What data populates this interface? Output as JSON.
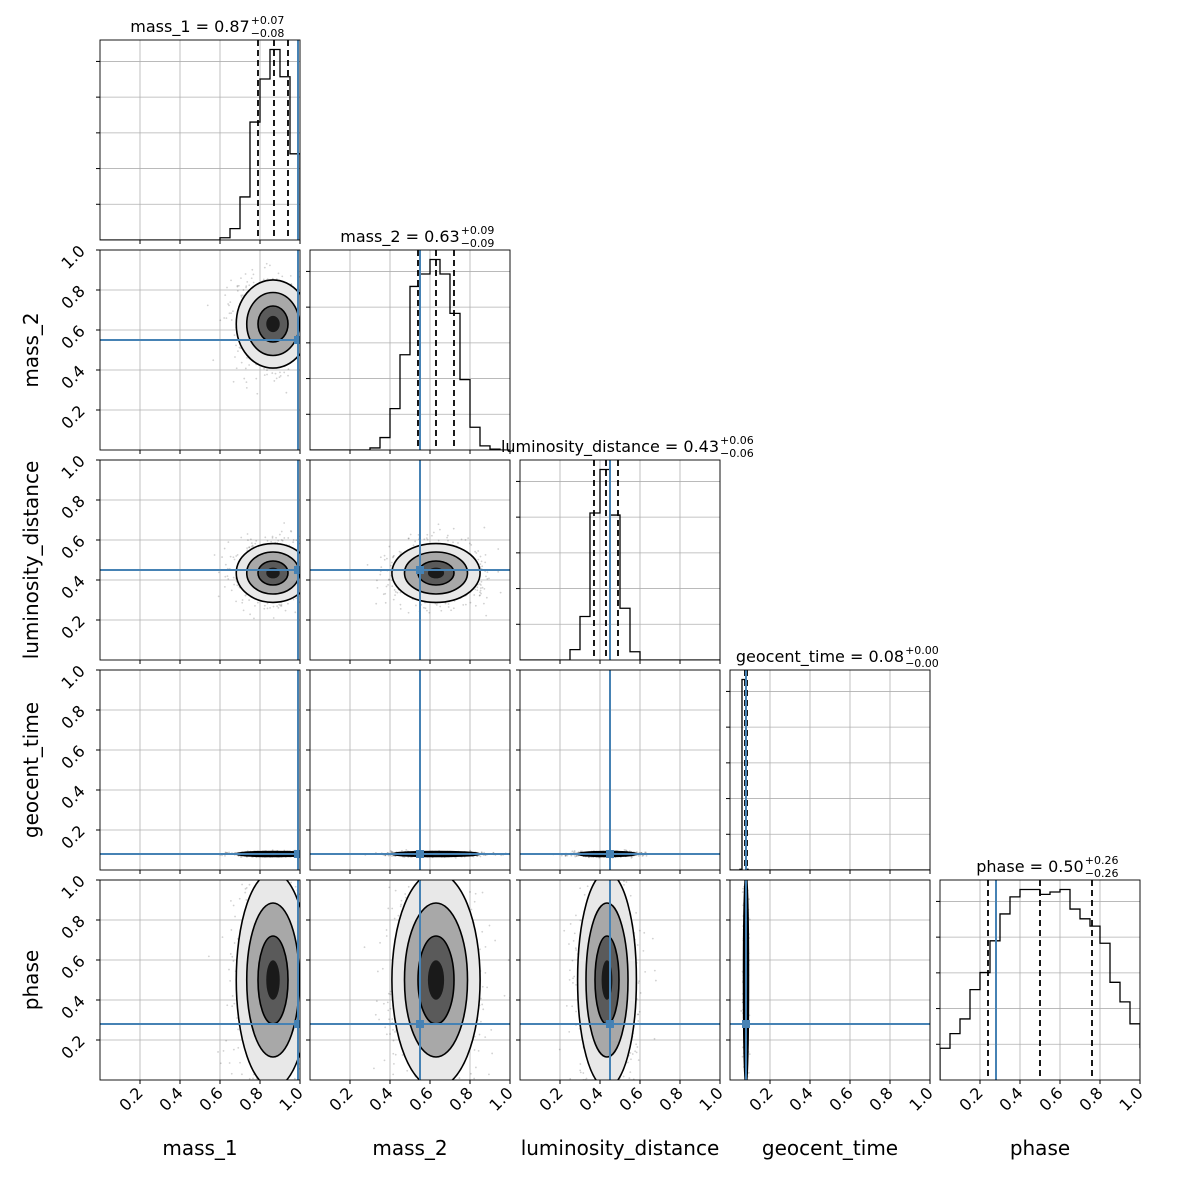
{
  "chart_data": {
    "type": "corner",
    "parameters": [
      "mass_1",
      "mass_2",
      "luminosity_distance",
      "geocent_time",
      "phase"
    ],
    "axis_labels": [
      "mass_1",
      "mass_2",
      "luminosity_distance",
      "geocent_time",
      "phase"
    ],
    "tick_labels": [
      "0.2",
      "0.4",
      "0.6",
      "0.8",
      "1.0"
    ],
    "axis_ranges": [
      [
        0,
        1
      ],
      [
        0,
        1
      ],
      [
        0,
        1
      ],
      [
        0,
        1
      ],
      [
        0,
        1
      ]
    ],
    "grid": true,
    "truths": [
      0.99,
      0.55,
      0.45,
      0.08,
      0.28
    ],
    "truth_color": "#4682b4",
    "hist_color": "#000000",
    "titles": [
      {
        "param": "mass_1",
        "text": "mass_1 = 0.87",
        "sup": "+0.07",
        "sub": "−0.08"
      },
      {
        "param": "mass_2",
        "text": "mass_2 = 0.63",
        "sup": "+0.09",
        "sub": "−0.09"
      },
      {
        "param": "luminosity_distance",
        "text": "luminosity_distance = 0.43",
        "sup": "+0.06",
        "sub": "−0.06"
      },
      {
        "param": "geocent_time",
        "text": "geocent_time = 0.08",
        "sup": "+0.00",
        "sub": "−0.00"
      },
      {
        "param": "phase",
        "text": "phase = 0.50",
        "sup": "+0.26",
        "sub": "−0.26"
      }
    ],
    "quantiles": [
      [
        0.79,
        0.87,
        0.94
      ],
      [
        0.54,
        0.63,
        0.72
      ],
      [
        0.37,
        0.43,
        0.49
      ],
      [
        0.075,
        0.08,
        0.085
      ],
      [
        0.24,
        0.5,
        0.76
      ]
    ],
    "marginals": [
      {
        "bins": [
          0.6,
          0.65,
          0.7,
          0.75,
          0.8,
          0.85,
          0.9,
          0.95,
          1.0
        ],
        "counts": [
          0.05,
          0.25,
          0.95,
          2.6,
          3.55,
          4.2,
          3.6,
          1.9
        ]
      },
      {
        "bins": [
          0.3,
          0.35,
          0.4,
          0.45,
          0.5,
          0.55,
          0.6,
          0.65,
          0.7,
          0.75,
          0.8,
          0.85,
          0.9,
          0.95
        ],
        "counts": [
          0.05,
          0.3,
          1.0,
          2.3,
          3.95,
          4.25,
          4.6,
          4.25,
          3.3,
          1.7,
          0.55,
          0.1,
          0.02
        ]
      },
      {
        "bins": [
          0.25,
          0.3,
          0.35,
          0.4,
          0.45,
          0.5,
          0.55,
          0.6
        ],
        "counts": [
          0.25,
          1.05,
          3.55,
          4.6,
          3.5,
          1.25,
          0.2
        ]
      },
      {
        "bins": [
          0.05,
          0.06,
          0.07,
          0.08,
          0.09
        ],
        "counts": [
          0.02,
          4.85,
          4.85,
          0.02
        ]
      },
      {
        "bins": [
          0,
          0.05,
          0.1,
          0.15,
          0.2,
          0.25,
          0.3,
          0.35,
          0.4,
          0.45,
          0.5,
          0.55,
          0.6,
          0.65,
          0.7,
          0.75,
          0.8,
          0.85,
          0.9,
          0.95,
          1.0
        ],
        "counts": [
          0.65,
          0.95,
          1.25,
          1.85,
          2.2,
          2.85,
          3.4,
          3.75,
          3.9,
          3.9,
          3.8,
          3.85,
          3.9,
          3.5,
          3.3,
          3.15,
          2.8,
          2.0,
          1.6,
          1.15,
          0.65
        ]
      }
    ],
    "joint_summaries": [
      {
        "pair": [
          "mass_2",
          "mass_1"
        ],
        "center": [
          0.865,
          0.63
        ],
        "spread": [
          0.075,
          0.09
        ],
        "rho": 0.0
      },
      {
        "pair": [
          "luminosity_distance",
          "mass_1"
        ],
        "center": [
          0.865,
          0.435
        ],
        "spread": [
          0.075,
          0.06
        ],
        "rho": 0.0
      },
      {
        "pair": [
          "luminosity_distance",
          "mass_2"
        ],
        "center": [
          0.63,
          0.435
        ],
        "spread": [
          0.09,
          0.06
        ],
        "rho": 0.0
      },
      {
        "pair": [
          "geocent_time",
          "mass_1"
        ],
        "center": [
          0.865,
          0.08
        ],
        "spread": [
          0.075,
          0.005
        ],
        "rho": 0.0
      },
      {
        "pair": [
          "geocent_time",
          "mass_2"
        ],
        "center": [
          0.63,
          0.08
        ],
        "spread": [
          0.09,
          0.005
        ],
        "rho": 0.0
      },
      {
        "pair": [
          "geocent_time",
          "luminosity_distance"
        ],
        "center": [
          0.435,
          0.08
        ],
        "spread": [
          0.06,
          0.005
        ],
        "rho": 0.0
      },
      {
        "pair": [
          "phase",
          "mass_1"
        ],
        "center": [
          0.865,
          0.5
        ],
        "spread": [
          0.075,
          0.22
        ],
        "rho": 0.0
      },
      {
        "pair": [
          "phase",
          "mass_2"
        ],
        "center": [
          0.63,
          0.5
        ],
        "spread": [
          0.09,
          0.22
        ],
        "rho": 0.0
      },
      {
        "pair": [
          "phase",
          "luminosity_distance"
        ],
        "center": [
          0.435,
          0.5
        ],
        "spread": [
          0.06,
          0.22
        ],
        "rho": 0.0
      },
      {
        "pair": [
          "phase",
          "geocent_time"
        ],
        "center": [
          0.08,
          0.5
        ],
        "spread": [
          0.005,
          0.22
        ],
        "rho": 0.0
      }
    ]
  }
}
